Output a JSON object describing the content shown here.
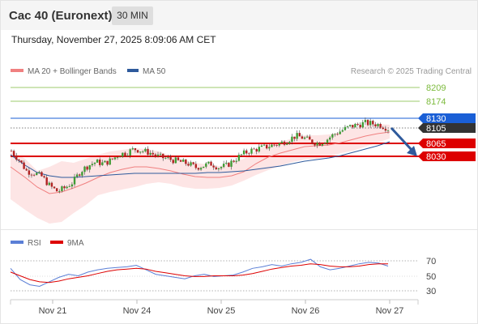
{
  "header": {
    "title": "Cac 40 (Euronext)",
    "timeframe": "30 MIN",
    "datetime": "Thursday, November 27, 2025 8:09:06 AM CET"
  },
  "legend": {
    "ma20_label": "MA 20 + Bollinger Bands",
    "ma20_color": "#f08080",
    "ma50_label": "MA 50",
    "ma50_color": "#2e5a9c",
    "credit": "Research © 2025 Trading Central"
  },
  "rsi_legend": {
    "rsi_label": "RSI",
    "rsi_color": "#5b7fd6",
    "ma_label": "9MA",
    "ma_color": "#dd0000"
  },
  "price_levels": [
    {
      "label": "8209",
      "value": 8209,
      "kind": "resistance_green",
      "color": "#7cba3c"
    },
    {
      "label": "8174",
      "value": 8174,
      "kind": "resistance_green",
      "color": "#7cba3c"
    },
    {
      "label": "8130",
      "value": 8130,
      "kind": "pivot",
      "color": "#1a5fd6"
    },
    {
      "label": "8105",
      "value": 8105,
      "kind": "last_price",
      "color": "#333333"
    },
    {
      "label": "8065",
      "value": 8065,
      "kind": "support",
      "color": "#dd0000"
    },
    {
      "label": "8030",
      "value": 8030,
      "kind": "support",
      "color": "#dd0000"
    }
  ],
  "rsi_ticks": [
    "70",
    "50",
    "30"
  ],
  "x_ticks": [
    "Nov 21",
    "Nov 24",
    "Nov 25",
    "Nov 26",
    "Nov 27"
  ],
  "chart_data": [
    {
      "type": "line",
      "title": "Cac 40 (Euronext) 30 MIN",
      "x_ticks": [
        "Nov 21",
        "Nov 24",
        "Nov 25",
        "Nov 26",
        "Nov 27"
      ],
      "y_axis_labels": [
        8209,
        8174,
        8130,
        8105,
        8065,
        8030
      ],
      "approx_close_series": [
        8045,
        8020,
        7990,
        7985,
        7975,
        7950,
        7935,
        7945,
        7960,
        7990,
        8005,
        8015,
        8010,
        8020,
        8035,
        8040,
        8050,
        8045,
        8040,
        8030,
        8025,
        8020,
        8015,
        8010,
        8000,
        8005,
        8010,
        8000,
        8005,
        8020,
        8035,
        8045,
        8050,
        8055,
        8060,
        8065,
        8075,
        8085,
        8080,
        8070,
        8065,
        8075,
        8090,
        8100,
        8110,
        8115,
        8120,
        8118,
        8115,
        8105
      ],
      "series": [
        {
          "name": "MA 20 + Bollinger Bands"
        },
        {
          "name": "MA 50"
        }
      ],
      "annotation": "arrow pointing down toward 8030"
    },
    {
      "type": "line",
      "ylim": [
        30,
        70
      ],
      "y_ticks": [
        70,
        50,
        30
      ],
      "series": [
        {
          "name": "RSI",
          "values": [
            60,
            45,
            38,
            36,
            42,
            48,
            52,
            50,
            55,
            58,
            60,
            61,
            62,
            64,
            58,
            52,
            50,
            48,
            46,
            50,
            52,
            49,
            50,
            51,
            55,
            60,
            62,
            65,
            63,
            66,
            68,
            72,
            62,
            58,
            60,
            63,
            66,
            68,
            67,
            63
          ]
        },
        {
          "name": "9MA",
          "values": [
            55,
            50,
            45,
            42,
            41,
            43,
            46,
            48,
            50,
            53,
            56,
            58,
            59,
            60,
            59,
            56,
            54,
            52,
            50,
            49,
            49,
            50,
            50,
            50,
            51,
            53,
            56,
            59,
            61,
            63,
            64,
            66,
            65,
            63,
            62,
            62,
            63,
            65,
            66,
            66
          ]
        }
      ]
    }
  ]
}
